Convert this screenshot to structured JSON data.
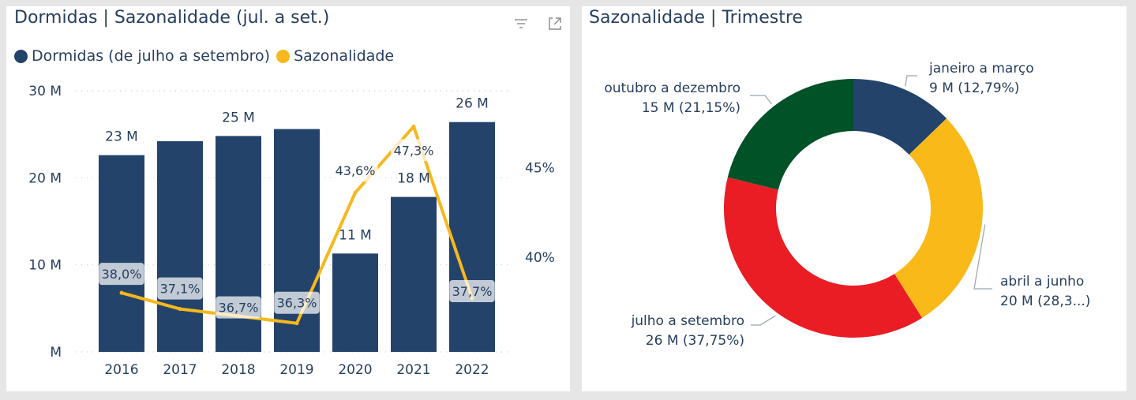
{
  "colors": {
    "bar": "#23436a",
    "line": "#f6b81d",
    "text": "#263f5e",
    "q1": "#23436a",
    "q2": "#f9b919",
    "q3": "#ea1d24",
    "q4": "#015227"
  },
  "left_panel": {
    "title": "Dormidas | Sazonalidade (jul. a set.)",
    "filter_icon": "filter-icon",
    "focus_icon": "focus-mode-icon"
  },
  "right_panel": {
    "title": "Sazonalidade | Trimestre"
  },
  "chart_data": [
    {
      "type": "bar",
      "title": "Dormidas | Sazonalidade (jul. a set.)",
      "categories": [
        "2016",
        "2017",
        "2018",
        "2019",
        "2020",
        "2021",
        "2022"
      ],
      "y_ticks": [
        "30 M",
        "20 M",
        "10 M",
        "M"
      ],
      "y2_ticks": [
        "45%",
        "40%"
      ],
      "ylim": [
        0,
        30
      ],
      "y2lim": [
        34.7,
        49.3
      ],
      "grid": true,
      "legend_position": "top-left",
      "series": [
        {
          "name": "Dormidas (de julho a setembro)",
          "type": "bar",
          "values": [
            22.6,
            24.2,
            24.8,
            25.6,
            11.3,
            17.8,
            26.4
          ],
          "labels": [
            "23 M",
            "",
            "25 M",
            "",
            "11 M",
            "18 M",
            "26 M"
          ]
        },
        {
          "name": "Sazonalidade",
          "type": "line",
          "axis": "right",
          "values": [
            38.0,
            37.1,
            36.7,
            36.3,
            43.6,
            47.3,
            37.7
          ],
          "labels": [
            "38,0%",
            "37,1%",
            "36,7%",
            "36,3%",
            "43,6%",
            "47,3%",
            "37,7%"
          ]
        }
      ]
    },
    {
      "type": "pie",
      "title": "Sazonalidade | Trimestre",
      "donut": true,
      "slices": [
        {
          "label": "janeiro a março",
          "value": 12.79,
          "value_label": "9 M (12,79%)"
        },
        {
          "label": "abril a junho",
          "value": 28.31,
          "value_label": "20 M (28,3...)"
        },
        {
          "label": "julho a setembro",
          "value": 37.75,
          "value_label": "26 M (37,75%)"
        },
        {
          "label": "outubro a dezembro",
          "value": 21.15,
          "value_label": "15 M (21,15%)"
        }
      ]
    }
  ]
}
